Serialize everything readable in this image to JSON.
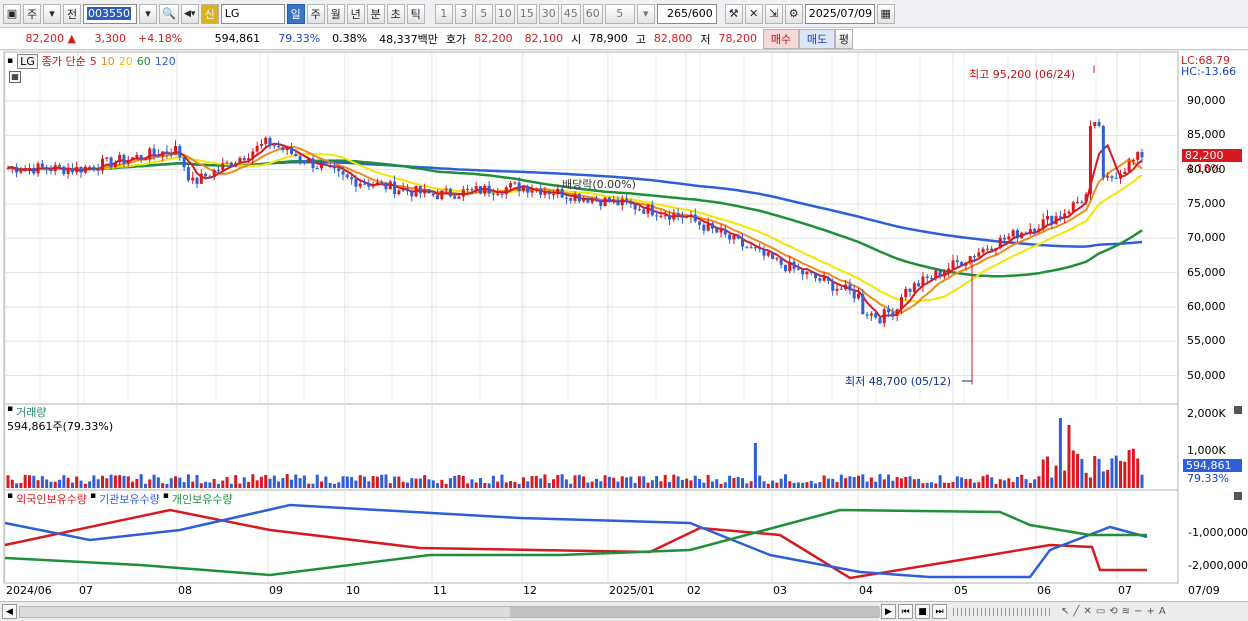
{
  "toolbar": {
    "period_main": "주",
    "prev_label": "전",
    "code": "003550",
    "name": "LG",
    "badge_shin": "신",
    "periods": [
      "일",
      "주",
      "월",
      "년",
      "분",
      "초",
      "틱"
    ],
    "active_period": "일",
    "intervals": [
      "1",
      "3",
      "5",
      "10",
      "15",
      "30",
      "45",
      "60"
    ],
    "interval_value": "5",
    "count_shown": "265",
    "count_total": "/600",
    "date": "2025/07/09"
  },
  "info": {
    "price": "82,200",
    "change": "3,300",
    "change_rate": "+4.18%",
    "volume": "594,861",
    "volume_ratio": "79.33%",
    "turnover": "0.38%",
    "amount": "48,337백만",
    "hoga_label": "호가",
    "ask": "82,200",
    "bid": "82,100",
    "open_label": "시",
    "open": "78,900",
    "high_label": "고",
    "high": "82,800",
    "low_label": "저",
    "low": "78,200",
    "buy_btn": "매수",
    "sell_btn": "매도",
    "eval_btn": "평"
  },
  "price_panel": {
    "name_tag": "LG",
    "legend_main": "종가 단순",
    "ma_labels": [
      "5",
      "10",
      "20",
      "60",
      "120"
    ],
    "ma_colors": [
      "#d71920",
      "#f08a1c",
      "#f3e600",
      "#1f8f3a",
      "#2f5fd8"
    ],
    "lc": "LC:68.79",
    "hc": "HC:-13.66",
    "high_annot": "최고 95,200 (06/24)",
    "low_annot": "최저 48,700 (05/12)",
    "dividend_annot": "배당락(0.00%)",
    "current_price_tag": "82,200",
    "current_change_tag": "4.18%",
    "y_ticks": [
      "90,000",
      "85,000",
      "80,000",
      "75,000",
      "70,000",
      "65,000",
      "60,000",
      "55,000",
      "50,000"
    ]
  },
  "volume_panel": {
    "title": "거래량",
    "info": "594,861주(79.33%)",
    "y_ticks": [
      "2,000K",
      "1,000K"
    ],
    "current_tag": "594,861",
    "ratio_tag": "79.33%"
  },
  "holdings_panel": {
    "series": [
      "외국인보유수량",
      "기관보유수량",
      "개인보유수량"
    ],
    "series_colors": [
      "#d71920",
      "#2f5fd8",
      "#1f8f3a"
    ],
    "y_ticks": [
      "-1,000,000",
      "-2,000,000"
    ]
  },
  "x_axis": {
    "labels": [
      "2024/06",
      "07",
      "08",
      "09",
      "10",
      "11",
      "12",
      "2025/01",
      "02",
      "03",
      "04",
      "05",
      "06",
      "07"
    ],
    "right_label": "07/09"
  },
  "chart_data": {
    "type": "line",
    "title": "",
    "ylim": [
      46000,
      97000
    ],
    "moving_averages": [
      5,
      10,
      20,
      60,
      120
    ],
    "close_keypoints": [
      {
        "x": "2024/06",
        "y": 80300
      },
      {
        "x": "07",
        "y": 80100
      },
      {
        "x": "08",
        "y": 83000
      },
      {
        "x": "08",
        "y": 78000
      },
      {
        "x": "09",
        "y": 84000
      },
      {
        "x": "10",
        "y": 78700
      },
      {
        "x": "11",
        "y": 76300
      },
      {
        "x": "12",
        "y": 77600
      },
      {
        "x": "2025/01",
        "y": 75400
      },
      {
        "x": "02",
        "y": 73100
      },
      {
        "x": "03",
        "y": 66800
      },
      {
        "x": "04",
        "y": 60300
      },
      {
        "x": "05",
        "y": 69000
      },
      {
        "x": "06",
        "y": 73400
      },
      {
        "x": "07",
        "y": 82200
      }
    ],
    "annotations": {
      "high": 95200,
      "high_date": "06/24",
      "low": 48700,
      "low_date": "05/12"
    }
  }
}
